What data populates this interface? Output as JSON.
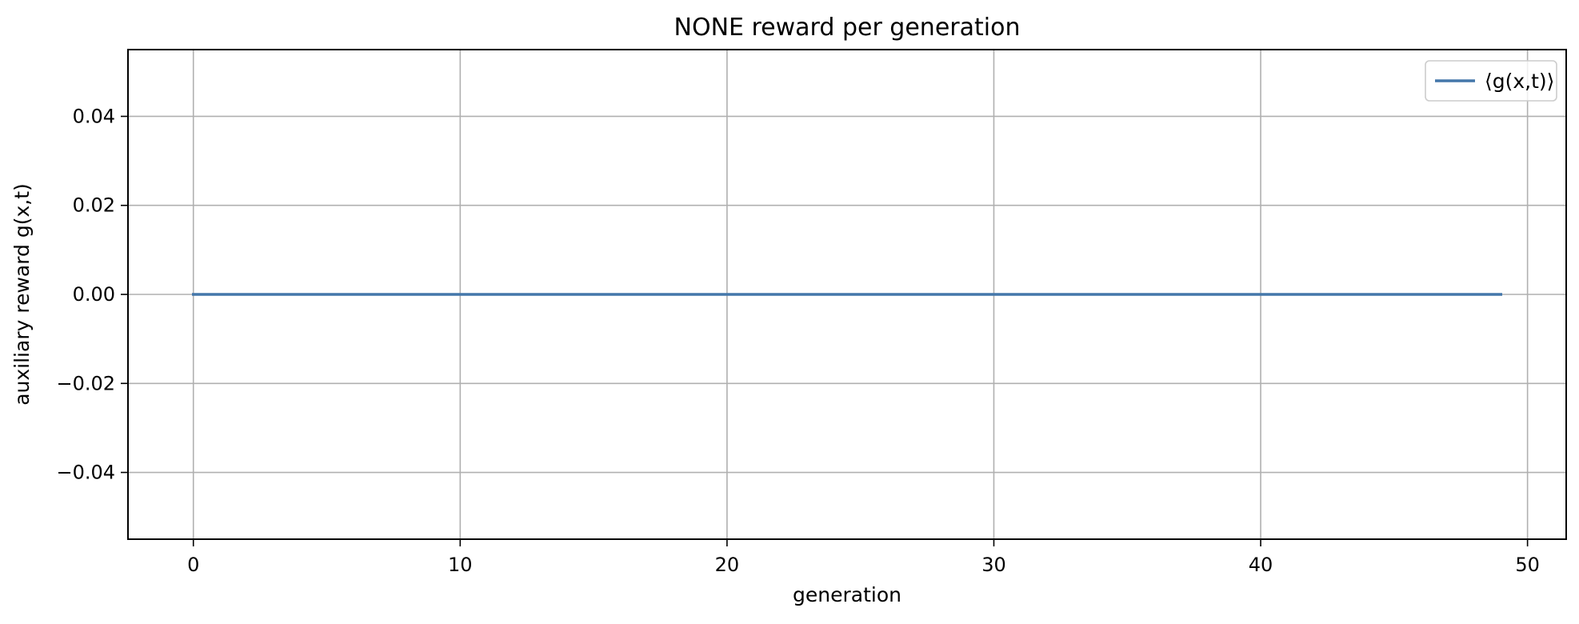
{
  "chart_data": {
    "type": "line",
    "title": "NONE reward per generation",
    "xlabel": "generation",
    "ylabel": "auxiliary reward g(x,t)",
    "xlim": [
      -2.45,
      51.45
    ],
    "ylim": [
      -0.055,
      0.055
    ],
    "x_ticks": [
      0,
      10,
      20,
      30,
      40,
      50
    ],
    "x_tick_labels": [
      "0",
      "10",
      "20",
      "30",
      "40",
      "50"
    ],
    "y_ticks": [
      -0.04,
      -0.02,
      0.0,
      0.02,
      0.04
    ],
    "y_tick_labels": [
      "−0.04",
      "−0.02",
      "0.00",
      "0.02",
      "0.04"
    ],
    "grid": true,
    "legend_position": "top-right",
    "series": [
      {
        "name": "⟨g(x,t)⟩",
        "color": "#4477aa",
        "x": [
          0,
          1,
          2,
          3,
          4,
          5,
          6,
          7,
          8,
          9,
          10,
          11,
          12,
          13,
          14,
          15,
          16,
          17,
          18,
          19,
          20,
          21,
          22,
          23,
          24,
          25,
          26,
          27,
          28,
          29,
          30,
          31,
          32,
          33,
          34,
          35,
          36,
          37,
          38,
          39,
          40,
          41,
          42,
          43,
          44,
          45,
          46,
          47,
          48,
          49
        ],
        "y": [
          0,
          0,
          0,
          0,
          0,
          0,
          0,
          0,
          0,
          0,
          0,
          0,
          0,
          0,
          0,
          0,
          0,
          0,
          0,
          0,
          0,
          0,
          0,
          0,
          0,
          0,
          0,
          0,
          0,
          0,
          0,
          0,
          0,
          0,
          0,
          0,
          0,
          0,
          0,
          0,
          0,
          0,
          0,
          0,
          0,
          0,
          0,
          0,
          0,
          0
        ]
      }
    ]
  }
}
